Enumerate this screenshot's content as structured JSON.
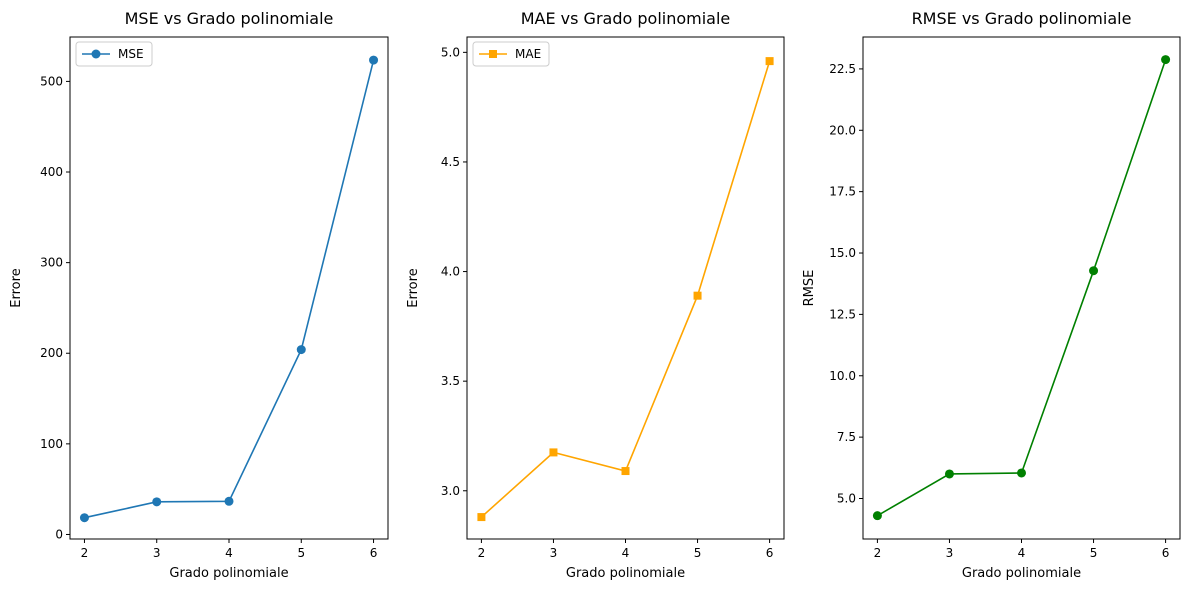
{
  "chart_data": [
    {
      "type": "line",
      "title": "MSE vs Grado polinomiale",
      "xlabel": "Grado polinomiale",
      "ylabel": "Errore",
      "x": [
        2,
        3,
        4,
        5,
        6
      ],
      "xticks": [
        2,
        3,
        4,
        5,
        6
      ],
      "xlim": [
        1.8,
        6.2
      ],
      "yticks": [
        0,
        100,
        200,
        300,
        400,
        500
      ],
      "ytick_labels": [
        "0",
        "100",
        "200",
        "300",
        "400",
        "500"
      ],
      "ylim": [
        -5,
        549
      ],
      "legend": "top-left",
      "grid": false,
      "series": [
        {
          "name": "MSE",
          "values": [
            18.5,
            36.0,
            36.6,
            204.0,
            523.5
          ],
          "color": "#1f77b4",
          "marker": "circle"
        }
      ]
    },
    {
      "type": "line",
      "title": "MAE vs Grado polinomiale",
      "xlabel": "Grado polinomiale",
      "ylabel": "Errore",
      "x": [
        2,
        3,
        4,
        5,
        6
      ],
      "xticks": [
        2,
        3,
        4,
        5,
        6
      ],
      "xlim": [
        1.8,
        6.2
      ],
      "yticks": [
        3.0,
        3.5,
        4.0,
        4.5,
        5.0
      ],
      "ytick_labels": [
        "3.0",
        "3.5",
        "4.0",
        "4.5",
        "5.0"
      ],
      "ylim": [
        2.78,
        5.07
      ],
      "legend": "top-left",
      "grid": false,
      "series": [
        {
          "name": "MAE",
          "values": [
            2.88,
            3.175,
            3.09,
            3.89,
            4.96
          ],
          "color": "#ffa500",
          "marker": "square"
        }
      ]
    },
    {
      "type": "line",
      "title": "RMSE vs Grado polinomiale",
      "xlabel": "Grado polinomiale",
      "ylabel": "RMSE",
      "x": [
        2,
        3,
        4,
        5,
        6
      ],
      "xticks": [
        2,
        3,
        4,
        5,
        6
      ],
      "xlim": [
        1.8,
        6.2
      ],
      "yticks": [
        5.0,
        7.5,
        10.0,
        12.5,
        15.0,
        17.5,
        20.0,
        22.5
      ],
      "ytick_labels": [
        "5.0",
        "7.5",
        "10.0",
        "12.5",
        "15.0",
        "17.5",
        "20.0",
        "22.5"
      ],
      "ylim": [
        3.35,
        23.8
      ],
      "grid": false,
      "series": [
        {
          "values": [
            4.3,
            6.0,
            6.04,
            14.28,
            22.88
          ],
          "color": "#008000",
          "marker": "circle"
        }
      ]
    }
  ]
}
